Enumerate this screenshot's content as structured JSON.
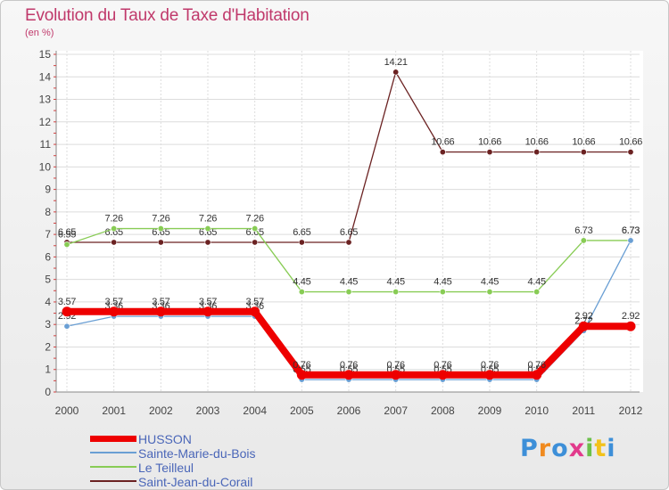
{
  "chart_data": {
    "type": "line",
    "title": "Evolution du Taux de Taxe d'Habitation",
    "subtitle": "(en %)",
    "xlabel": "",
    "ylabel": "",
    "ylim": [
      0,
      15
    ],
    "yticks": [
      "0",
      "1",
      "2",
      "3",
      "4",
      "5",
      "6",
      "7",
      "8",
      "9",
      "10",
      "11",
      "12",
      "13",
      "14",
      "15"
    ],
    "categories": [
      "2000",
      "2001",
      "2002",
      "2003",
      "2004",
      "2005",
      "2006",
      "2007",
      "2008",
      "2009",
      "2010",
      "2011",
      "2012"
    ],
    "grid": true,
    "legend_position": "bottom-left",
    "series": [
      {
        "name": "Saint-Jean-du-Corail",
        "color": "#6b2222",
        "values": [
          6.65,
          6.65,
          6.65,
          6.65,
          6.65,
          6.65,
          6.65,
          14.21,
          10.66,
          10.66,
          10.66,
          10.66,
          10.66
        ],
        "labels": [
          "6.65",
          "6.65",
          "6.65",
          "6.65",
          "6.65",
          "6.65",
          "6.65",
          "14.21",
          "10.66",
          "10.66",
          "10.66",
          "10.66",
          "10.66"
        ]
      },
      {
        "name": "Le Teilleul",
        "color": "#88cc55",
        "values": [
          6.55,
          7.26,
          7.26,
          7.26,
          7.26,
          4.45,
          4.45,
          4.45,
          4.45,
          4.45,
          4.45,
          6.73,
          6.73
        ],
        "labels": [
          "6.55",
          "7.26",
          "7.26",
          "7.26",
          "7.26",
          "4.45",
          "4.45",
          "4.45",
          "4.45",
          "4.45",
          "4.45",
          "6.73",
          "6.73"
        ]
      },
      {
        "name": "Sainte-Marie-du-Bois",
        "color": "#6a9fd4",
        "values": [
          2.92,
          3.36,
          3.36,
          3.36,
          3.36,
          0.55,
          0.55,
          0.55,
          0.55,
          0.55,
          0.55,
          2.72,
          6.73
        ],
        "labels": [
          "2.92",
          "3.36",
          "3.36",
          "3.36",
          "3.36",
          "0.55",
          "0.55",
          "0.55",
          "0.55",
          "0.55",
          "0.55",
          "2.72",
          "6.73"
        ]
      },
      {
        "name": "HUSSON",
        "color": "#ee0000",
        "values": [
          3.57,
          3.57,
          3.57,
          3.57,
          3.57,
          0.76,
          0.76,
          0.76,
          0.76,
          0.76,
          0.76,
          2.92,
          2.92
        ],
        "labels": [
          "3.57",
          "3.57",
          "3.57",
          "3.57",
          "3.57",
          "0.76",
          "0.76",
          "0.76",
          "0.76",
          "0.76",
          "0.76",
          "2.92",
          "2.92"
        ]
      }
    ],
    "legend": [
      "HUSSON",
      "Sainte-Marie-du-Bois",
      "Le Teilleul",
      "Saint-Jean-du-Corail"
    ]
  },
  "branding": {
    "logo_letters": [
      "P",
      "r",
      "o",
      "x",
      "i",
      "t",
      "i"
    ],
    "logo_colors": [
      "#3d8fd8",
      "#f08a1e",
      "#3d8fd8",
      "#e23a8c",
      "#6cc04a",
      "#f2c21b",
      "#3d8fd8"
    ]
  }
}
